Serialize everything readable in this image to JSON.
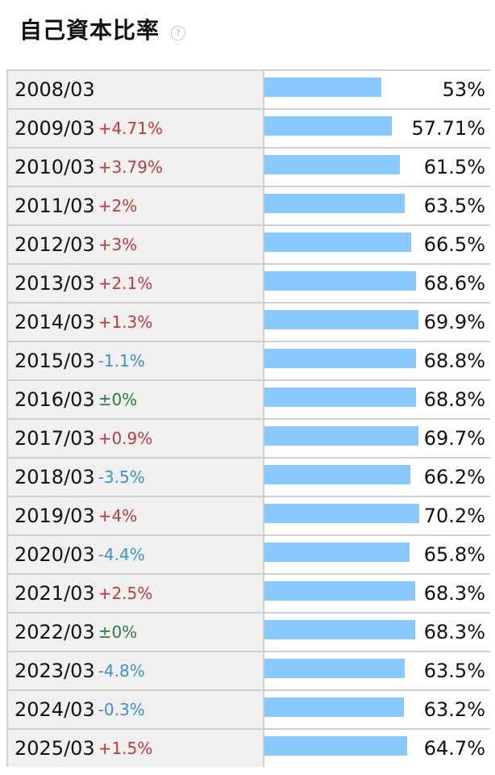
{
  "header": {
    "title": "自己資本比率",
    "help_icon": "question-circle-icon"
  },
  "colors": {
    "bar": "#87c8ff",
    "increase": "#c43838",
    "decrease": "#3a8fe0",
    "unchanged": "#2e7a3e"
  },
  "chart_data": {
    "type": "bar",
    "orientation": "horizontal",
    "title": "自己資本比率",
    "categories": [
      "2008/03",
      "2009/03",
      "2010/03",
      "2011/03",
      "2012/03",
      "2013/03",
      "2014/03",
      "2015/03",
      "2016/03",
      "2017/03",
      "2018/03",
      "2019/03",
      "2020/03",
      "2021/03",
      "2022/03",
      "2023/03",
      "2024/03",
      "2025/03"
    ],
    "values": [
      53,
      57.71,
      61.5,
      63.5,
      66.5,
      68.6,
      69.9,
      68.8,
      68.8,
      69.7,
      66.2,
      70.2,
      65.8,
      68.3,
      68.3,
      63.5,
      63.2,
      64.7
    ],
    "value_labels": [
      "53%",
      "57.71%",
      "61.5%",
      "63.5%",
      "66.5%",
      "68.6%",
      "69.9%",
      "68.8%",
      "68.8%",
      "69.7%",
      "66.2%",
      "70.2%",
      "65.8%",
      "68.3%",
      "68.3%",
      "63.5%",
      "63.2%",
      "64.7%"
    ],
    "changes": [
      "",
      "+4.71%",
      "+3.79%",
      "+2%",
      "+3%",
      "+2.1%",
      "+1.3%",
      "-1.1%",
      "±0%",
      "+0.9%",
      "-3.5%",
      "+4%",
      "-4.4%",
      "+2.5%",
      "±0%",
      "-4.8%",
      "-0.3%",
      "+1.5%"
    ]
  }
}
